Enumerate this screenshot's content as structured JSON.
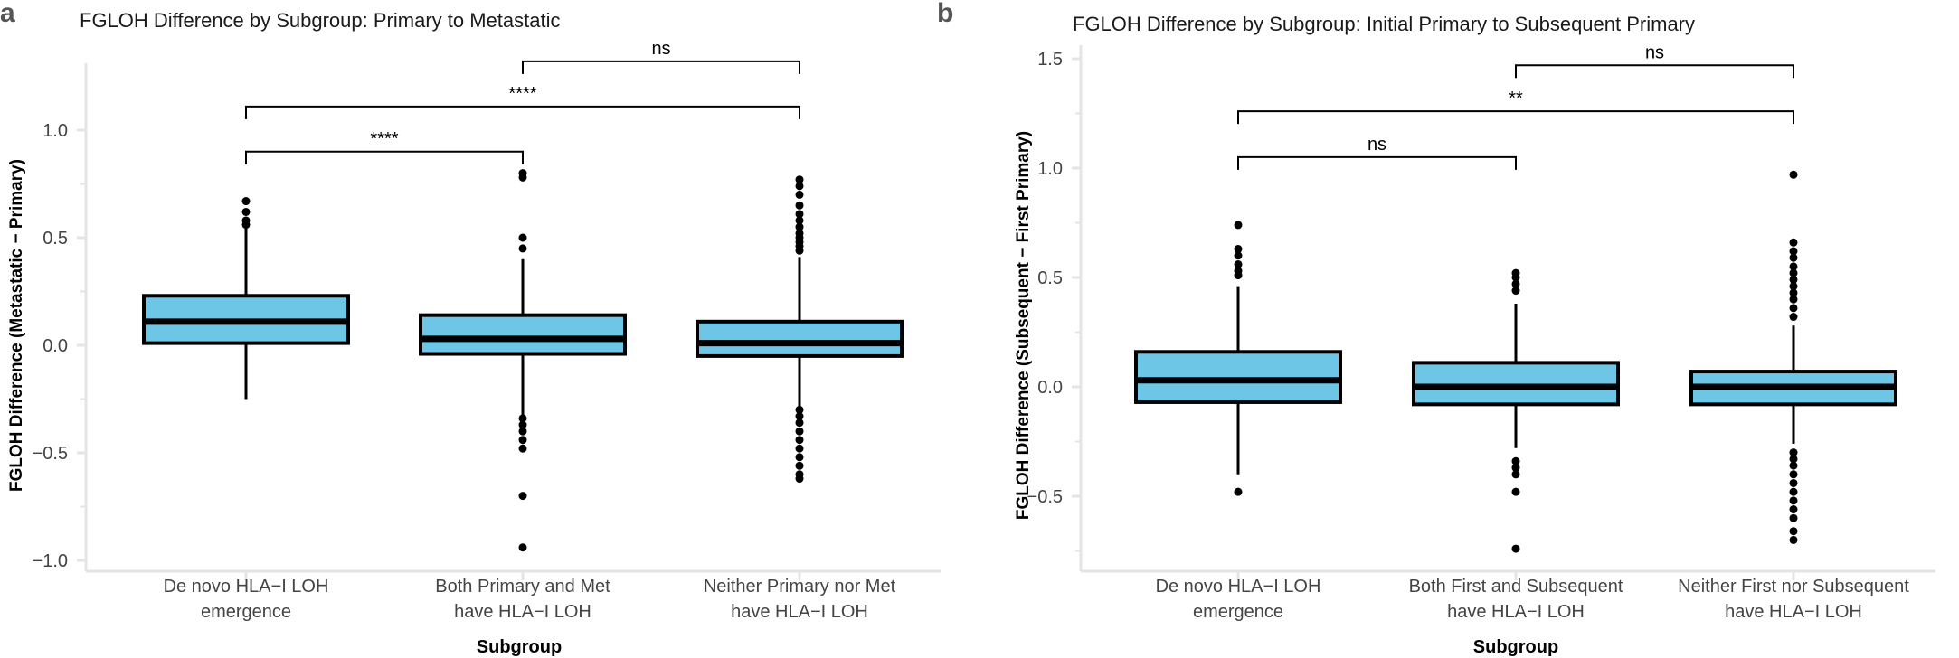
{
  "chart_data": [
    {
      "type": "boxplot",
      "panel_label": "a",
      "title": "FGLOH Difference by Subgroup: Primary to Metastatic",
      "xlabel": "Subgroup",
      "ylabel": "FGLOH Difference (Metastatic − Primary)",
      "ylim": [
        -1.05,
        1.3
      ],
      "yticks": [
        -1.0,
        -0.5,
        0.0,
        0.5,
        1.0
      ],
      "ytick_labels": [
        "−1.0",
        "−0.5",
        "0.0",
        "0.5",
        "1.0"
      ],
      "box_color": "#6EC6E6",
      "categories": [
        [
          "De novo HLA−I LOH",
          "emergence"
        ],
        [
          "Both Primary and Met",
          "have HLA−I LOH"
        ],
        [
          "Neither Primary nor Met",
          "have HLA−I LOH"
        ]
      ],
      "boxes": [
        {
          "q1": 0.01,
          "median": 0.11,
          "q3": 0.23,
          "whisker_low": -0.25,
          "whisker_high": 0.56,
          "outliers": [
            0.56,
            0.58,
            0.62,
            0.67
          ]
        },
        {
          "q1": -0.04,
          "median": 0.03,
          "q3": 0.14,
          "whisker_low": -0.33,
          "whisker_high": 0.4,
          "outliers": [
            0.45,
            0.5,
            0.78,
            0.8,
            -0.34,
            -0.37,
            -0.4,
            -0.44,
            -0.48,
            -0.7,
            -0.94
          ]
        },
        {
          "q1": -0.05,
          "median": 0.01,
          "q3": 0.11,
          "whisker_low": -0.29,
          "whisker_high": 0.41,
          "outliers": [
            0.44,
            0.46,
            0.48,
            0.5,
            0.52,
            0.55,
            0.58,
            0.61,
            0.65,
            0.7,
            0.74,
            0.77,
            -0.3,
            -0.33,
            -0.36,
            -0.4,
            -0.44,
            -0.48,
            -0.52,
            -0.56,
            -0.6,
            -0.62
          ]
        }
      ],
      "comparisons": [
        {
          "from": 0,
          "to": 1,
          "y": 0.9,
          "label": "****"
        },
        {
          "from": 0,
          "to": 2,
          "y": 1.11,
          "label": "****"
        },
        {
          "from": 1,
          "to": 2,
          "y": 1.32,
          "label": "ns"
        }
      ]
    },
    {
      "type": "boxplot",
      "panel_label": "b",
      "title": "FGLOH Difference by Subgroup: Initial Primary to Subsequent Primary",
      "xlabel": "Subgroup",
      "ylabel": "FGLOH Difference (Subsequent − First Primary)",
      "ylim": [
        -0.8,
        1.55
      ],
      "yticks": [
        -0.5,
        0.0,
        0.5,
        1.0,
        1.5
      ],
      "ytick_labels": [
        "−0.5",
        "0.0",
        "0.5",
        "1.0",
        "1.5"
      ],
      "box_color": "#6EC6E6",
      "categories": [
        [
          "De novo HLA−I LOH",
          "emergence"
        ],
        [
          "Both First and Subsequent",
          "have HLA−I LOH"
        ],
        [
          "Neither First nor Subsequent",
          "have HLA−I LOH"
        ]
      ],
      "boxes": [
        {
          "q1": -0.07,
          "median": 0.03,
          "q3": 0.16,
          "whisker_low": -0.4,
          "whisker_high": 0.46,
          "outliers": [
            0.51,
            0.53,
            0.56,
            0.6,
            0.63,
            0.74,
            -0.48
          ]
        },
        {
          "q1": -0.08,
          "median": 0.0,
          "q3": 0.11,
          "whisker_low": -0.28,
          "whisker_high": 0.38,
          "outliers": [
            0.44,
            0.47,
            0.5,
            0.52,
            -0.34,
            -0.37,
            -0.4,
            -0.48,
            -0.74
          ]
        },
        {
          "q1": -0.08,
          "median": 0.0,
          "q3": 0.07,
          "whisker_low": -0.26,
          "whisker_high": 0.28,
          "outliers": [
            0.32,
            0.36,
            0.4,
            0.43,
            0.46,
            0.49,
            0.52,
            0.55,
            0.59,
            0.62,
            0.66,
            0.97,
            -0.3,
            -0.33,
            -0.36,
            -0.4,
            -0.44,
            -0.48,
            -0.52,
            -0.56,
            -0.6,
            -0.66,
            -0.7
          ]
        }
      ],
      "comparisons": [
        {
          "from": 0,
          "to": 1,
          "y": 1.05,
          "label": "ns"
        },
        {
          "from": 0,
          "to": 2,
          "y": 1.26,
          "label": "**"
        },
        {
          "from": 1,
          "to": 2,
          "y": 1.47,
          "label": "ns"
        }
      ]
    }
  ]
}
